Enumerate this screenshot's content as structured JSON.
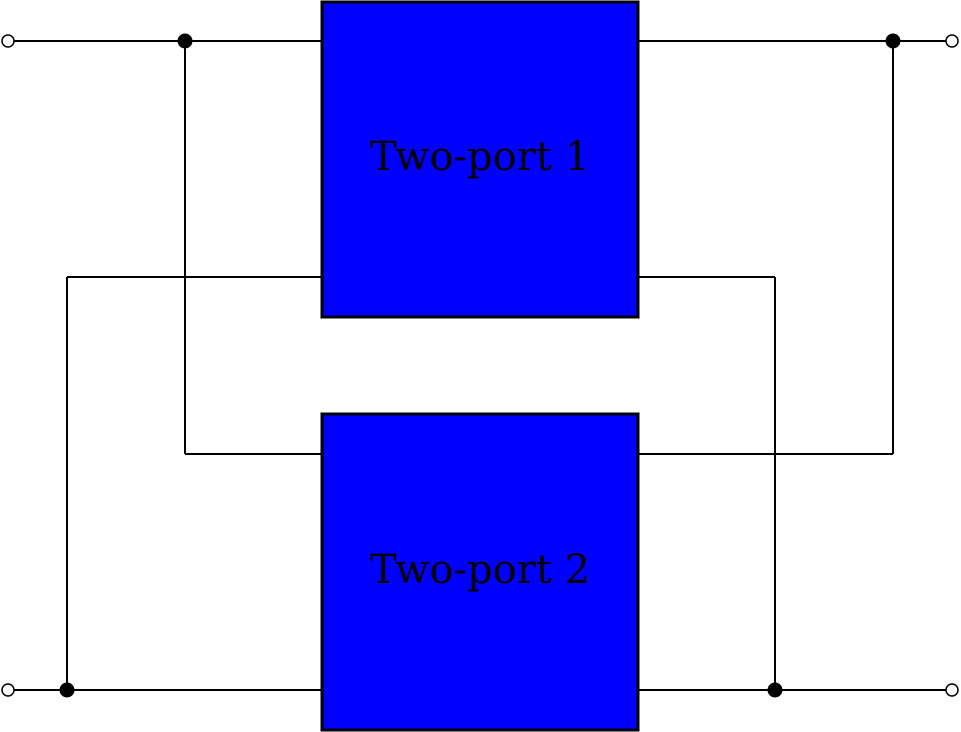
{
  "diagram": {
    "type": "two-port series-parallel interconnection schematic",
    "box_fill": "#0000ff",
    "line_color": "#000000",
    "two_port_1": {
      "label": "Two-port 1"
    },
    "two_port_2": {
      "label": "Two-port 2"
    }
  }
}
